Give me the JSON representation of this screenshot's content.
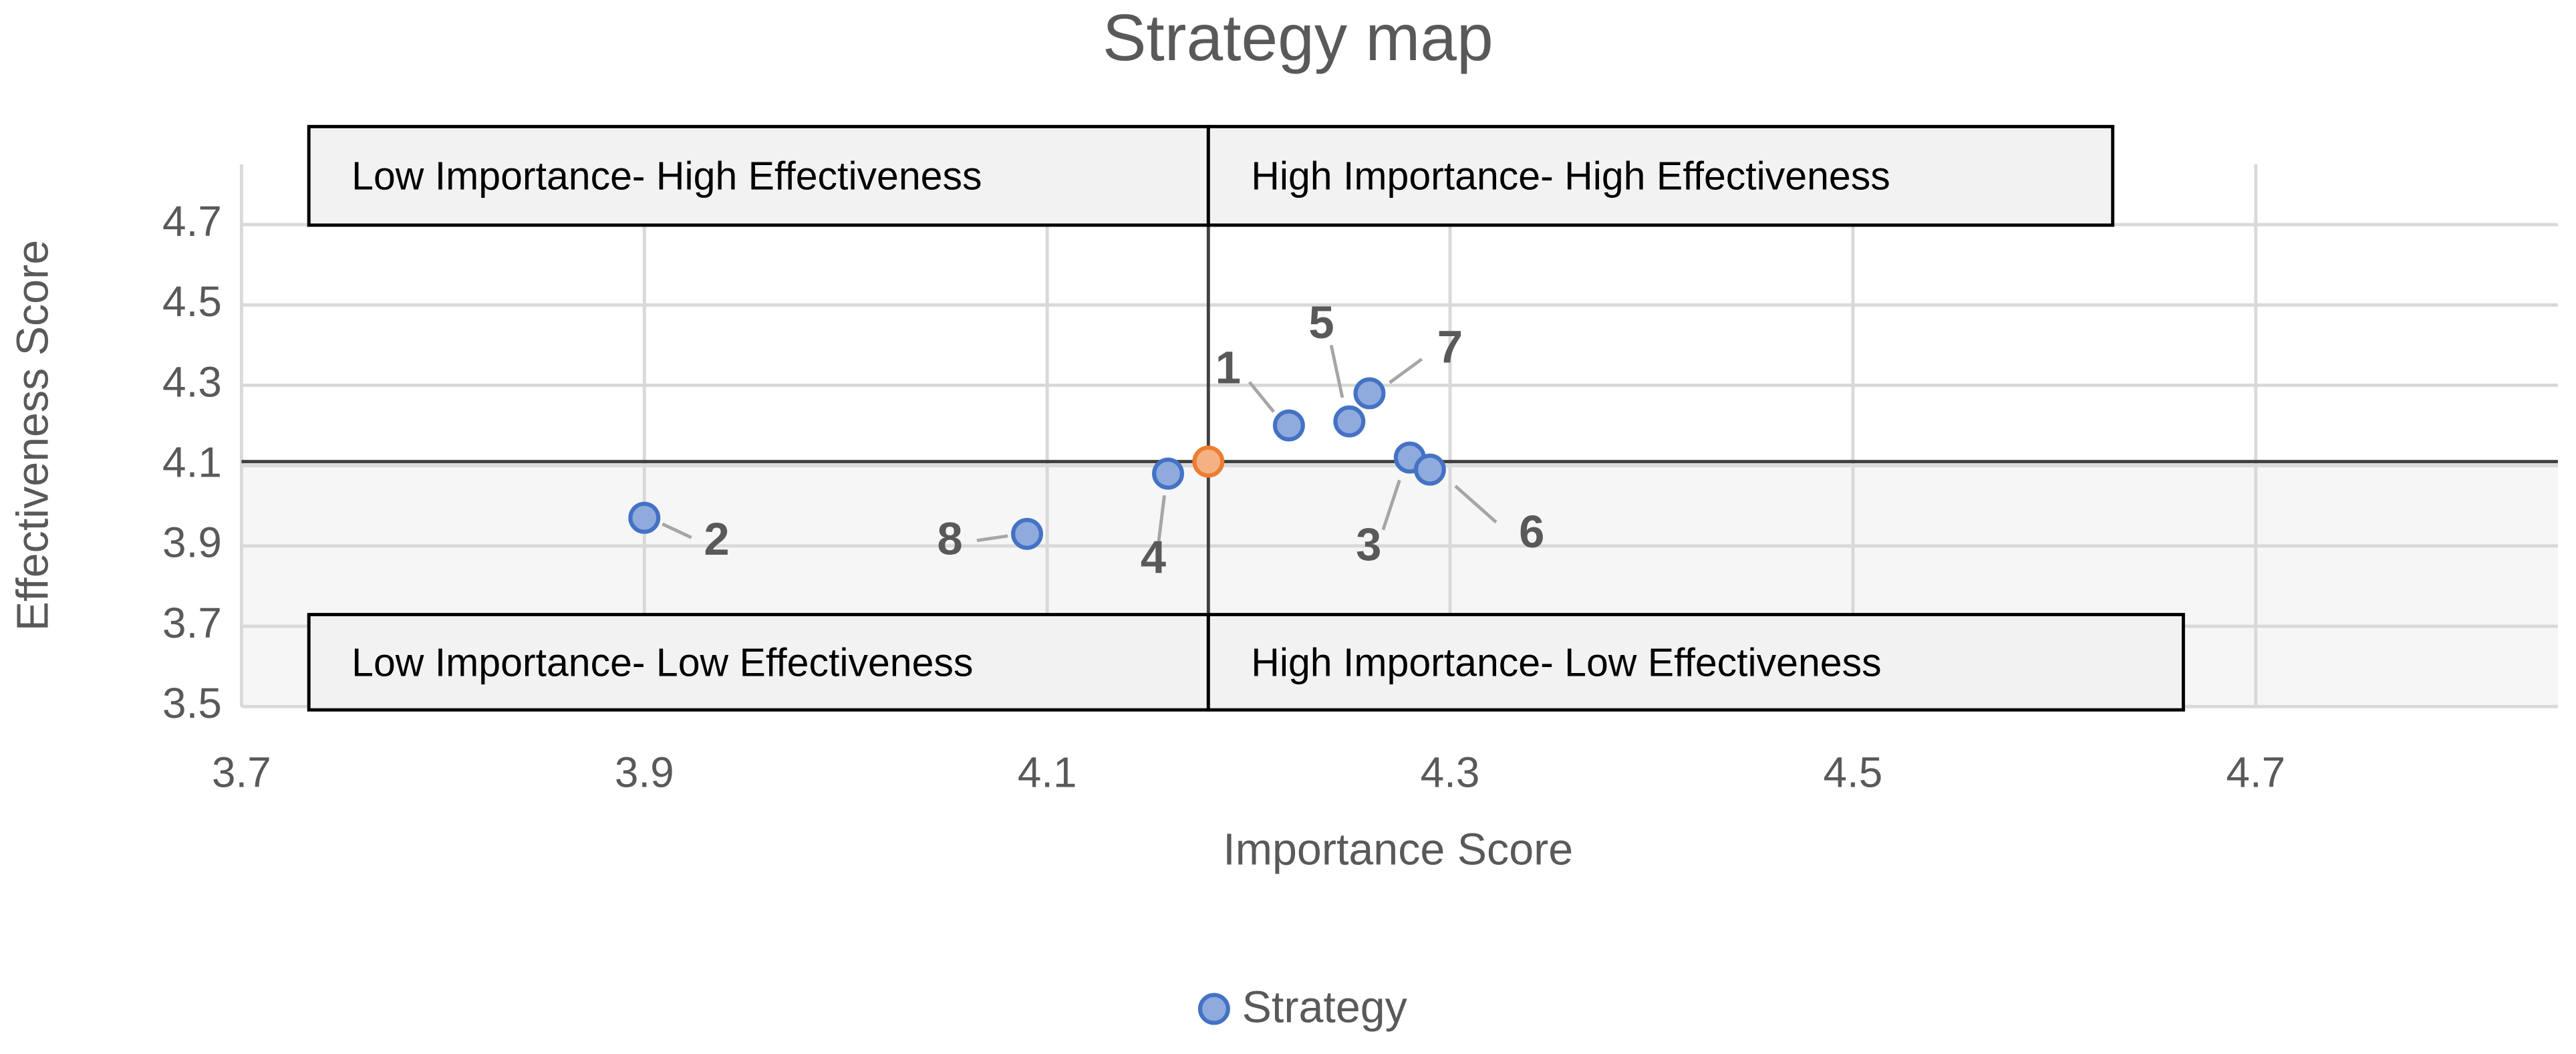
{
  "chart_data": {
    "type": "scatter",
    "title": "Strategy map",
    "x_label": "Importance Score",
    "y_label": "Effectiveness Score",
    "xlim": [
      3.7,
      4.85
    ],
    "ylim": [
      3.5,
      4.85
    ],
    "xticks": [
      3.7,
      3.9,
      4.1,
      4.3,
      4.5,
      4.7
    ],
    "yticks": [
      3.5,
      3.7,
      3.9,
      4.1,
      4.3,
      4.5,
      4.7
    ],
    "grid": true,
    "legend": "bottom",
    "series": [
      {
        "name": "Strategy",
        "color": "#8faadc",
        "stroke": "#4472c4",
        "x": [
          4.22,
          3.9,
          4.28,
          4.16,
          4.25,
          4.29,
          4.26,
          4.09
        ],
        "values": [
          4.2,
          3.97,
          4.12,
          4.08,
          4.21,
          4.09,
          4.28,
          3.93
        ],
        "labels": [
          "1",
          "2",
          "3",
          "4",
          "5",
          "6",
          "7",
          "8"
        ]
      }
    ],
    "reference_point": {
      "x": 4.18,
      "y": 4.11,
      "color": "#f4b183",
      "stroke": "#ed7d31"
    },
    "quadrants": [
      "Low Importance- High Effectiveness",
      "High Importance- High Effectiveness",
      "Low Importance- Low Effectiveness",
      "High Importance- Low Effectiveness"
    ]
  }
}
